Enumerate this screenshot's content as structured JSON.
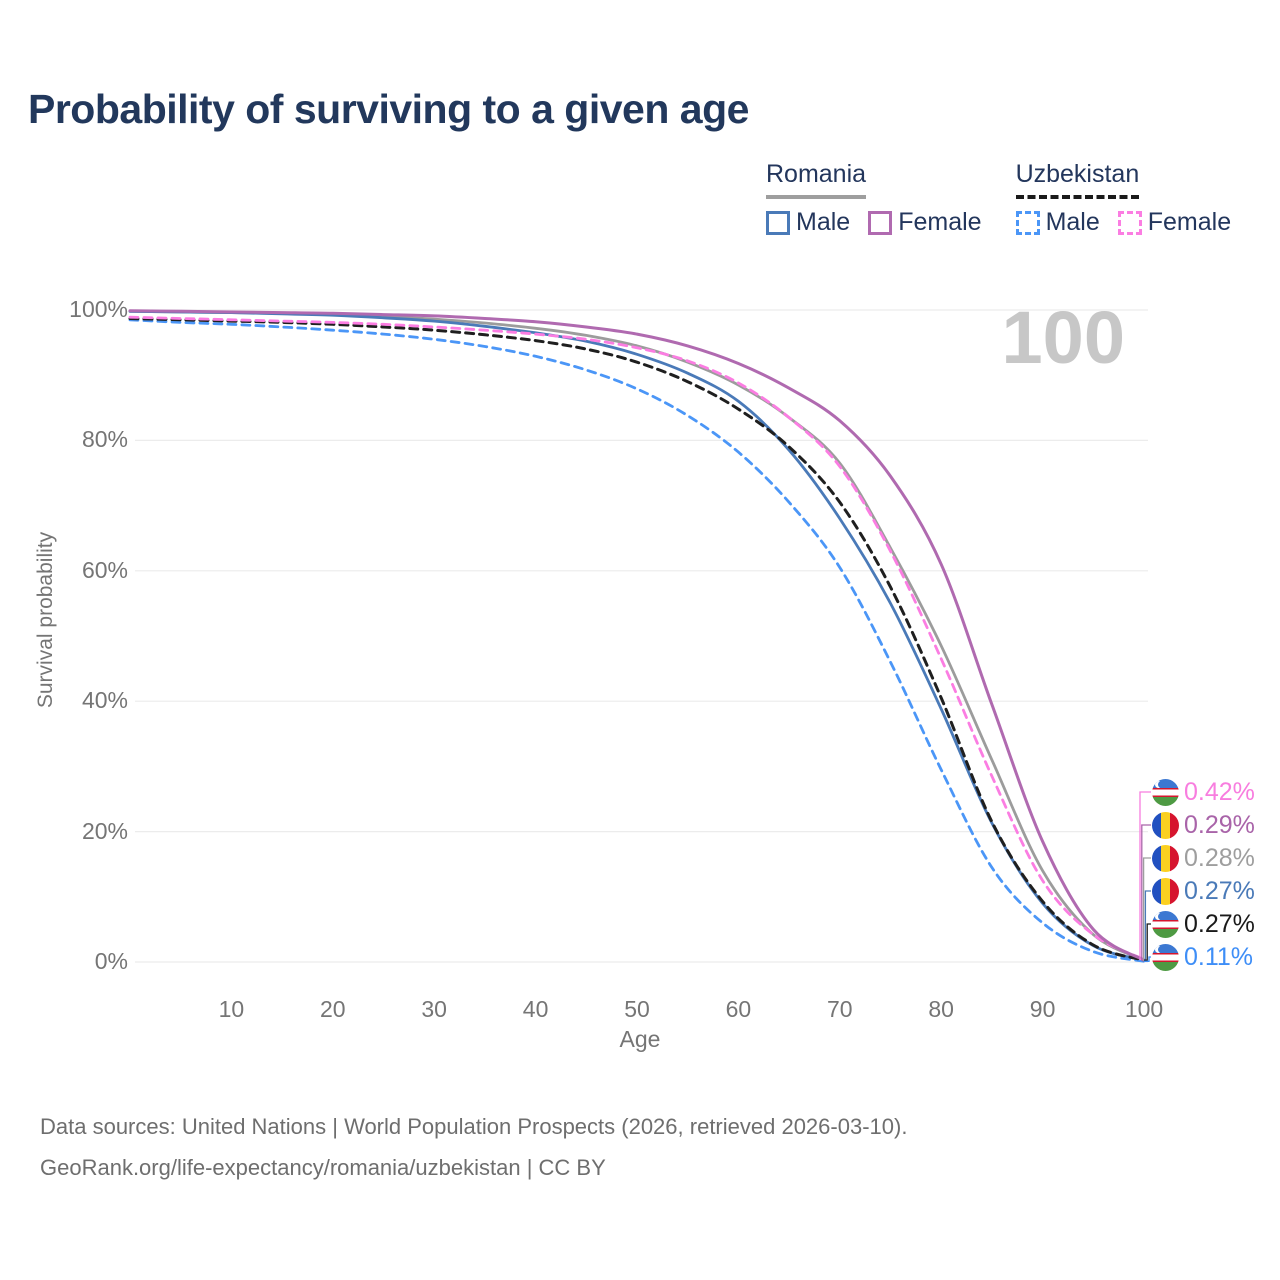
{
  "title": "Probability of surviving to a given age",
  "watermark": "100",
  "legend": {
    "groups": [
      {
        "name": "Romania",
        "underline": "solid",
        "underline_color": "#9e9e9e",
        "items": [
          {
            "label": "Male",
            "color": "#4a7ab8",
            "dash": false
          },
          {
            "label": "Female",
            "color": "#b06ab0",
            "dash": false
          }
        ]
      },
      {
        "name": "Uzbekistan",
        "underline": "dashed",
        "underline_color": "#1a1a1a",
        "items": [
          {
            "label": "Male",
            "color": "#4b96f7",
            "dash": true
          },
          {
            "label": "Female",
            "color": "#fb7de2",
            "dash": true
          }
        ]
      }
    ]
  },
  "chart_data": {
    "type": "line",
    "title": "Probability of surviving to a given age",
    "xlabel": "Age",
    "ylabel": "Survival probability",
    "xlim": [
      0,
      100
    ],
    "ylim": [
      0,
      100
    ],
    "grid": "horizontal",
    "legend_position": "top-right",
    "x_ticks": [
      "10",
      "20",
      "30",
      "40",
      "50",
      "60",
      "70",
      "80",
      "90",
      "100"
    ],
    "y_ticks": [
      "0%",
      "20%",
      "40%",
      "60%",
      "80%",
      "100%"
    ],
    "x": [
      0,
      5,
      10,
      15,
      20,
      25,
      30,
      35,
      40,
      45,
      50,
      55,
      60,
      65,
      70,
      75,
      80,
      85,
      90,
      95,
      100
    ],
    "series": [
      {
        "name": "Romania (both sexes)",
        "country": "Romania",
        "sex": "both",
        "style": "solid",
        "color": "#9c9c9c",
        "width": 2.8,
        "z": 1,
        "values": [
          99.8,
          99.7,
          99.6,
          99.5,
          99.3,
          99.0,
          98.6,
          98.0,
          97.2,
          96.1,
          94.5,
          92.0,
          88.5,
          83.5,
          76.5,
          63.5,
          48.5,
          31.0,
          14.0,
          4.2,
          0.28
        ]
      },
      {
        "name": "Romania Male",
        "country": "Romania",
        "sex": "male",
        "style": "solid",
        "color": "#4a7ab8",
        "width": 2.8,
        "z": 2,
        "values": [
          99.8,
          99.7,
          99.6,
          99.4,
          99.2,
          98.8,
          98.3,
          97.5,
          96.5,
          95.2,
          93.2,
          90.3,
          86.0,
          78.5,
          68.0,
          55.0,
          38.8,
          21.3,
          9.0,
          2.5,
          0.27
        ]
      },
      {
        "name": "Uzbekistan Male",
        "country": "Uzbekistan",
        "sex": "male",
        "style": "dashed",
        "color": "#4b96f7",
        "width": 2.8,
        "z": 3,
        "values": [
          98.5,
          98.1,
          97.8,
          97.4,
          96.9,
          96.3,
          95.5,
          94.4,
          92.9,
          90.8,
          87.9,
          83.8,
          78.2,
          70.5,
          60.5,
          46.0,
          29.5,
          14.5,
          6.0,
          1.6,
          0.11
        ]
      },
      {
        "name": "Uzbekistan (both sexes)",
        "country": "Uzbekistan",
        "sex": "both",
        "style": "dashed",
        "color": "#1f1f1f",
        "width": 3.0,
        "z": 4,
        "values": [
          98.7,
          98.5,
          98.3,
          98.1,
          97.8,
          97.4,
          96.9,
          96.2,
          95.3,
          94.0,
          92.0,
          89.0,
          84.8,
          79.0,
          70.5,
          57.5,
          40.5,
          21.5,
          9.3,
          2.6,
          0.27
        ]
      },
      {
        "name": "Uzbekistan Female",
        "country": "Uzbekistan",
        "sex": "female",
        "style": "dashed",
        "color": "#fb7de2",
        "width": 2.8,
        "z": 5,
        "values": [
          98.9,
          98.7,
          98.5,
          98.3,
          98.1,
          97.8,
          97.4,
          96.9,
          96.3,
          95.5,
          94.2,
          92.2,
          88.8,
          83.5,
          76.0,
          63.0,
          46.5,
          28.5,
          12.5,
          4.2,
          0.42
        ]
      },
      {
        "name": "Romania Female",
        "country": "Romania",
        "sex": "female",
        "style": "solid",
        "color": "#b06ab0",
        "width": 3.0,
        "z": 6,
        "values": [
          99.9,
          99.8,
          99.7,
          99.6,
          99.5,
          99.3,
          99.1,
          98.7,
          98.2,
          97.4,
          96.3,
          94.5,
          91.8,
          88.0,
          83.0,
          74.5,
          61.0,
          39.5,
          18.5,
          5.0,
          0.29
        ]
      }
    ],
    "end_labels": [
      {
        "series": "Uzbekistan Female",
        "value": "0.42%",
        "color": "#f87ddf",
        "flag": "uz"
      },
      {
        "series": "Romania Female",
        "value": "0.29%",
        "color": "#a964a9",
        "flag": "ro"
      },
      {
        "series": "Romania (both sexes)",
        "value": "0.28%",
        "color": "#9e9e9e",
        "flag": "ro"
      },
      {
        "series": "Romania Male",
        "value": "0.27%",
        "color": "#4a7ab8",
        "flag": "ro"
      },
      {
        "series": "Uzbekistan (both sexes)",
        "value": "0.27%",
        "color": "#1a1a1a",
        "flag": "uz"
      },
      {
        "series": "Uzbekistan Male",
        "value": "0.11%",
        "color": "#3e8ef7",
        "flag": "uz"
      }
    ],
    "gridline_color": "#ececec",
    "axis_text_color": "#757575",
    "watermark_color": "#c7c7c7"
  },
  "footer": {
    "line1": "Data sources: United Nations | World Population Prospects (2026, retrieved 2026-03-10).",
    "line2": "GeoRank.org/life-expectancy/romania/uzbekistan | CC BY"
  }
}
